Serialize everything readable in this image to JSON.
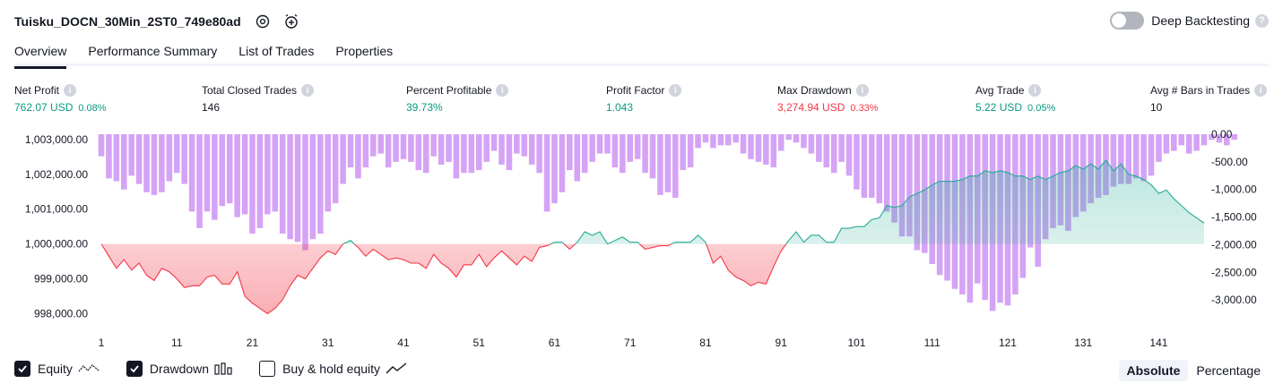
{
  "header": {
    "strategy_name": "Tuisku_DOCN_30Min_2ST0_749e80ad",
    "deep_backtesting_label": "Deep Backtesting",
    "deep_backtesting_enabled": false
  },
  "tabs": [
    {
      "label": "Overview",
      "active": true
    },
    {
      "label": "Performance Summary",
      "active": false
    },
    {
      "label": "List of Trades",
      "active": false
    },
    {
      "label": "Properties",
      "active": false
    }
  ],
  "metrics": [
    {
      "label": "Net Profit",
      "value": "762.07 USD",
      "pct": "0.08%",
      "color": "pos"
    },
    {
      "label": "Total Closed Trades",
      "value": "146",
      "pct": "",
      "color": "neu"
    },
    {
      "label": "Percent Profitable",
      "value": "39.73%",
      "pct": "",
      "color": "pos"
    },
    {
      "label": "Profit Factor",
      "value": "1.043",
      "pct": "",
      "color": "pos"
    },
    {
      "label": "Max Drawdown",
      "value": "3,274.94 USD",
      "pct": "0.33%",
      "color": "neg"
    },
    {
      "label": "Avg Trade",
      "value": "5.22 USD",
      "pct": "0.05%",
      "color": "pos"
    },
    {
      "label": "Avg # Bars in Trades",
      "value": "10",
      "pct": "",
      "color": "neu"
    }
  ],
  "legend": {
    "equity_label": "Equity",
    "equity_checked": true,
    "drawdown_label": "Drawdown",
    "drawdown_checked": true,
    "buyhold_label": "Buy & hold equity",
    "buyhold_checked": false
  },
  "modes": {
    "absolute_label": "Absolute",
    "percentage_label": "Percentage",
    "active": "absolute"
  },
  "colors": {
    "equity_up": "#22ab94",
    "equity_down": "#f23645",
    "drawdown_bar": "#ce93f3",
    "text": "#131722"
  },
  "chart_data": {
    "type": "area",
    "x_tick_labels": [
      "1",
      "11",
      "21",
      "31",
      "41",
      "51",
      "61",
      "71",
      "81",
      "91",
      "101",
      "111",
      "121",
      "131",
      "141"
    ],
    "xlim": [
      1,
      147
    ],
    "left_axis": {
      "tick_labels": [
        "1,003,000.00",
        "1,002,000.00",
        "1,001,000.00",
        "1,000,000.00",
        "999,000.00",
        "998,000.00"
      ],
      "ylim": [
        997600,
        1003150
      ],
      "baseline": 1000000
    },
    "right_axis": {
      "tick_labels": [
        "0.00",
        "-500.00",
        "-1,000.00",
        "-1,500.00",
        "-2,000.00",
        "-2,500.00",
        "-3,000.00"
      ],
      "ylim": [
        -3500,
        0
      ]
    },
    "series": [
      {
        "name": "Equity",
        "values": [
          1000000,
          999650,
          999300,
          999550,
          999250,
          999450,
          999100,
          998950,
          999300,
          999200,
          999000,
          998750,
          998800,
          998800,
          999050,
          999100,
          998850,
          998850,
          999200,
          998500,
          998300,
          998150,
          998000,
          998150,
          998400,
          998800,
          999100,
          999000,
          999300,
          999600,
          999800,
          999700,
          1000000,
          1000100,
          999900,
          999650,
          999850,
          999700,
          999550,
          999600,
          999550,
          999450,
          999450,
          999300,
          999700,
          999450,
          999300,
          999050,
          999400,
          999400,
          999700,
          999350,
          999600,
          999800,
          999600,
          999400,
          999650,
          999500,
          999900,
          999950,
          1000050,
          1000050,
          999850,
          1000050,
          1000350,
          1000250,
          1000350,
          1000000,
          1000100,
          1000200,
          1000050,
          1000050,
          999850,
          999900,
          999950,
          999950,
          1000050,
          1000050,
          1000050,
          1000250,
          1000050,
          999450,
          999650,
          999250,
          999050,
          998950,
          998800,
          998900,
          998850,
          999350,
          999800,
          1000100,
          1000350,
          1000050,
          1000250,
          1000250,
          1000050,
          1000050,
          1000450,
          1000450,
          1000500,
          1000500,
          1000700,
          1000750,
          1001100,
          1001050,
          1001100,
          1001350,
          1001450,
          1001550,
          1001700,
          1001800,
          1001800,
          1001800,
          1001850,
          1001950,
          1001950,
          1002100,
          1002050,
          1002100,
          1002050,
          1001950,
          1001950,
          1001850,
          1001950,
          1001850,
          1001950,
          1002050,
          1002100,
          1002250,
          1002150,
          1002300,
          1002150,
          1002400,
          1002100,
          1002300,
          1002000,
          1001950,
          1001850,
          1001700,
          1001450,
          1001550,
          1001300,
          1001100,
          1000900,
          1000750,
          1000600
        ]
      },
      {
        "name": "Drawdown",
        "values": [
          -400,
          -800,
          -850,
          -1000,
          -750,
          -900,
          -1050,
          -1100,
          -1050,
          -850,
          -700,
          -900,
          -1400,
          -1700,
          -1400,
          -1550,
          -1300,
          -1250,
          -1500,
          -1450,
          -1800,
          -1700,
          -1450,
          -1400,
          -1800,
          -1900,
          -1950,
          -2100,
          -1900,
          -1800,
          -1400,
          -1250,
          -900,
          -600,
          -800,
          -600,
          -400,
          -350,
          -600,
          -500,
          -450,
          -500,
          -650,
          -700,
          -400,
          -550,
          -500,
          -800,
          -700,
          -700,
          -650,
          -500,
          -300,
          -550,
          -650,
          -350,
          -400,
          -550,
          -700,
          -1400,
          -1250,
          -1050,
          -650,
          -850,
          -700,
          -500,
          -350,
          -350,
          -600,
          -700,
          -500,
          -450,
          -700,
          -800,
          -1100,
          -1050,
          -1150,
          -650,
          -600,
          -250,
          -150,
          -250,
          -200,
          -200,
          -150,
          -350,
          -450,
          -500,
          -550,
          -600,
          -300,
          -100,
          -150,
          -250,
          -350,
          -500,
          -600,
          -700,
          -500,
          -750,
          -1000,
          -1150,
          -1150,
          -1250,
          -1400,
          -1600,
          -1850,
          -1850,
          -2100,
          -2150,
          -2350,
          -2550,
          -2650,
          -2800,
          -2900,
          -3050,
          -2700,
          -3000,
          -3200,
          -3050,
          -3100,
          -2900,
          -2600,
          -2050,
          -2400,
          -1900,
          -1700,
          -1650,
          -1750,
          -1500,
          -1400,
          -1250,
          -1150,
          -1100,
          -950,
          -900,
          -900,
          -800,
          -850,
          -750,
          -500,
          -350,
          -300,
          -200,
          -350,
          -300,
          -200,
          -100,
          -150,
          -200,
          -100
        ]
      }
    ]
  }
}
